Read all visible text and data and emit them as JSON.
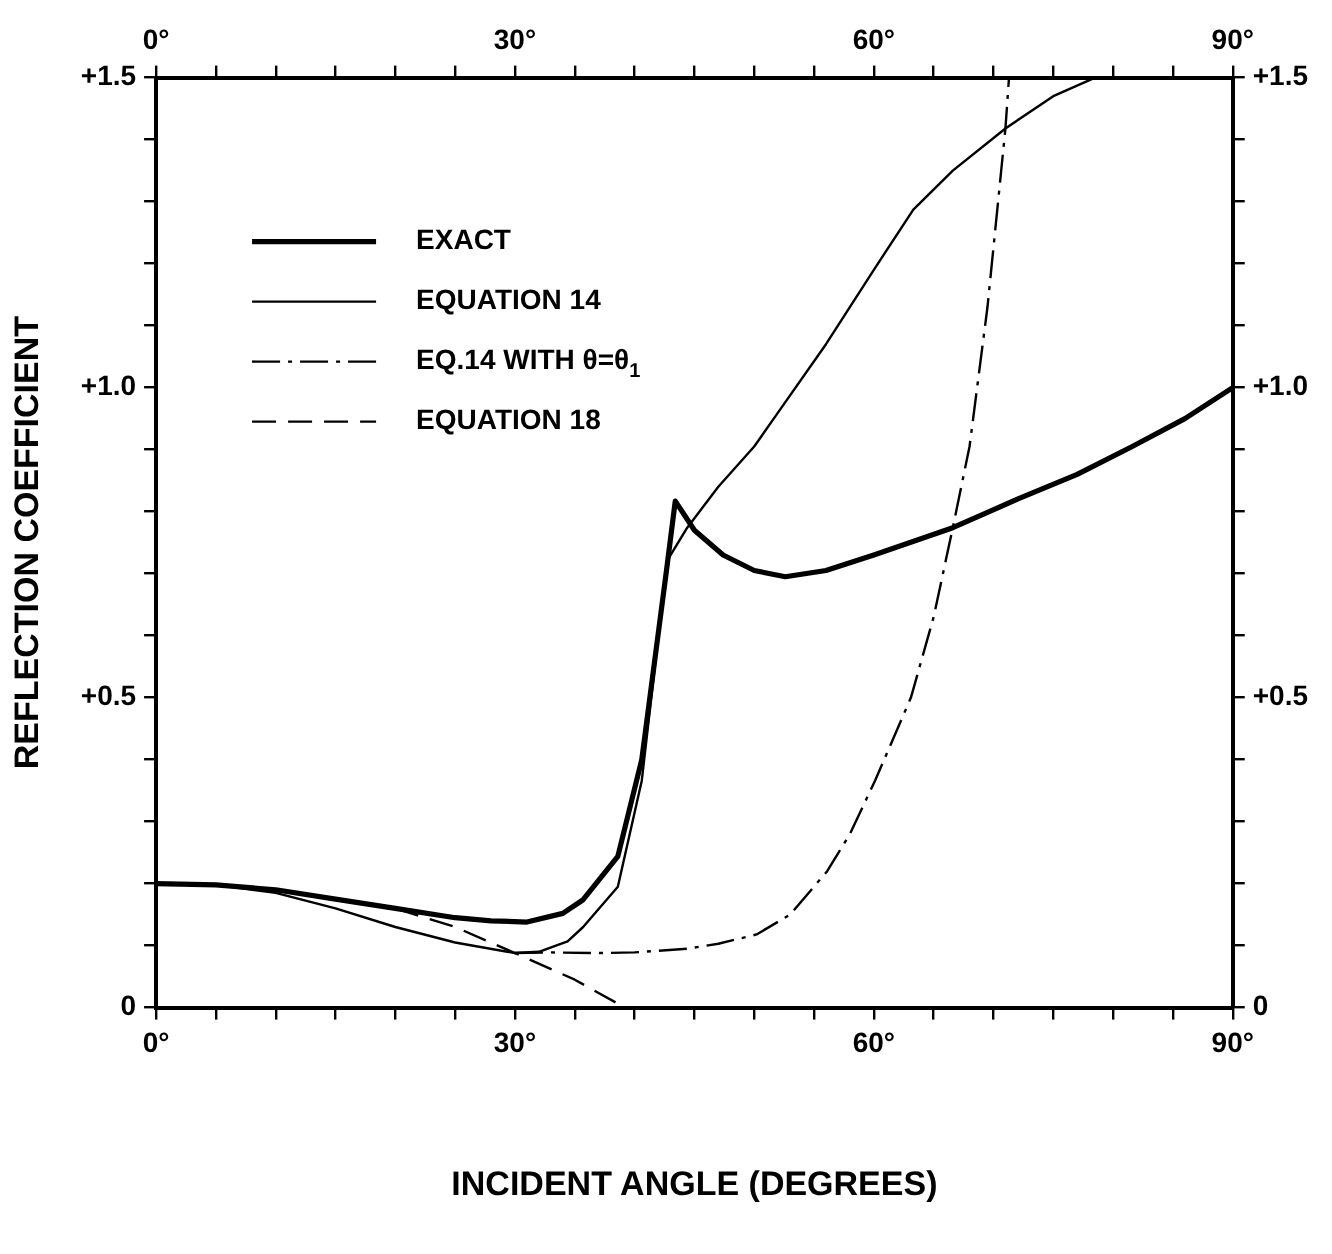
{
  "chart_data": {
    "type": "line",
    "xlabel": "INCIDENT ANGLE (DEGREES)",
    "ylabel": "REFLECTION COEFFICIENT",
    "legend": "top left",
    "grid": false,
    "marker": "none",
    "xlim": [
      0,
      90
    ],
    "ylim": [
      0,
      1.5
    ],
    "x2lim": [
      0,
      90
    ],
    "y2lim": [
      0,
      1.5
    ],
    "xticks": [
      {
        "value": 0,
        "label": "0°"
      },
      {
        "value": 5,
        "label": null
      },
      {
        "value": 10,
        "label": null
      },
      {
        "value": 15,
        "label": null
      },
      {
        "value": 20,
        "label": null
      },
      {
        "value": 25,
        "label": null
      },
      {
        "value": 30,
        "label": "30°"
      },
      {
        "value": 35,
        "label": null
      },
      {
        "value": 40,
        "label": null
      },
      {
        "value": 45,
        "label": null
      },
      {
        "value": 50,
        "label": null
      },
      {
        "value": 55,
        "label": null
      },
      {
        "value": 60,
        "label": "60°"
      },
      {
        "value": 65,
        "label": null
      },
      {
        "value": 70,
        "label": null
      },
      {
        "value": 75,
        "label": null
      },
      {
        "value": 80,
        "label": null
      },
      {
        "value": 85,
        "label": null
      },
      {
        "value": 90,
        "label": "90°"
      }
    ],
    "x2ticks": [
      {
        "value": 0,
        "label": "0°"
      },
      {
        "value": 5,
        "label": null
      },
      {
        "value": 10,
        "label": null
      },
      {
        "value": 15,
        "label": null
      },
      {
        "value": 20,
        "label": null
      },
      {
        "value": 25,
        "label": null
      },
      {
        "value": 30,
        "label": "30°"
      },
      {
        "value": 35,
        "label": null
      },
      {
        "value": 40,
        "label": null
      },
      {
        "value": 45,
        "label": null
      },
      {
        "value": 50,
        "label": null
      },
      {
        "value": 55,
        "label": null
      },
      {
        "value": 60,
        "label": "60°"
      },
      {
        "value": 65,
        "label": null
      },
      {
        "value": 70,
        "label": null
      },
      {
        "value": 75,
        "label": null
      },
      {
        "value": 80,
        "label": null
      },
      {
        "value": 85,
        "label": null
      },
      {
        "value": 90,
        "label": "90°"
      }
    ],
    "yticks": [
      {
        "value": 0,
        "label": "0"
      },
      {
        "value": 0.1,
        "label": null
      },
      {
        "value": 0.2,
        "label": null
      },
      {
        "value": 0.3,
        "label": null
      },
      {
        "value": 0.4,
        "label": null
      },
      {
        "value": 0.5,
        "label": "+0.5"
      },
      {
        "value": 0.6,
        "label": null
      },
      {
        "value": 0.7,
        "label": null
      },
      {
        "value": 0.8,
        "label": null
      },
      {
        "value": 0.9,
        "label": null
      },
      {
        "value": 1.0,
        "label": "+1.0"
      },
      {
        "value": 1.1,
        "label": null
      },
      {
        "value": 1.2,
        "label": null
      },
      {
        "value": 1.3,
        "label": null
      },
      {
        "value": 1.4,
        "label": null
      },
      {
        "value": 1.5,
        "label": "+1.5"
      }
    ],
    "y2ticks": [
      {
        "value": 0,
        "label": "0"
      },
      {
        "value": 0.1,
        "label": null
      },
      {
        "value": 0.2,
        "label": null
      },
      {
        "value": 0.3,
        "label": null
      },
      {
        "value": 0.4,
        "label": null
      },
      {
        "value": 0.5,
        "label": "+0.5"
      },
      {
        "value": 0.6,
        "label": null
      },
      {
        "value": 0.7,
        "label": null
      },
      {
        "value": 0.8,
        "label": null
      },
      {
        "value": 0.9,
        "label": null
      },
      {
        "value": 1.0,
        "label": "+1.0"
      },
      {
        "value": 1.1,
        "label": null
      },
      {
        "value": 1.2,
        "label": null
      },
      {
        "value": 1.3,
        "label": null
      },
      {
        "value": 1.4,
        "label": null
      },
      {
        "value": 1.5,
        "label": "+1.5"
      }
    ],
    "series": [
      {
        "name": "EXACT",
        "color": "#000000",
        "line_style": "solid",
        "x": [
          0,
          5,
          10,
          15,
          20,
          25,
          28,
          31,
          34,
          35.7,
          38.6,
          40.6,
          42.7,
          43.4,
          45,
          47.4,
          50,
          52.6,
          56,
          60,
          66.6,
          72,
          77,
          81.6,
          86,
          90
        ],
        "values": [
          0.2,
          0.198,
          0.19,
          0.175,
          0.16,
          0.145,
          0.14,
          0.138,
          0.152,
          0.174,
          0.244,
          0.4,
          0.71,
          0.817,
          0.77,
          0.73,
          0.705,
          0.695,
          0.705,
          0.73,
          0.774,
          0.82,
          0.86,
          0.905,
          0.95,
          1.0
        ]
      },
      {
        "name": "EQUATION 14",
        "color": "#000000",
        "line_style": "solid",
        "x": [
          0,
          5,
          10,
          15,
          20,
          25,
          30,
          32,
          34.4,
          35.7,
          38.6,
          40.6,
          42.7,
          44.4,
          47,
          50,
          52,
          56,
          60,
          63.3,
          66.6,
          71,
          75,
          78.5
        ],
        "values": [
          0.2,
          0.198,
          0.185,
          0.16,
          0.13,
          0.105,
          0.088,
          0.09,
          0.107,
          0.13,
          0.195,
          0.366,
          0.72,
          0.774,
          0.84,
          0.905,
          0.96,
          1.07,
          1.19,
          1.287,
          1.35,
          1.418,
          1.47,
          1.5
        ]
      },
      {
        "name": "EQ.14 WITH θ=θ$_{1}$",
        "color": "#000000",
        "line_style": "dashdot",
        "x": [
          30,
          33,
          37,
          40,
          44.4,
          47,
          50.2,
          53,
          56.1,
          58,
          60.1,
          63.1,
          65,
          66.6,
          68,
          69.5,
          71,
          71.3
        ],
        "values": [
          0.088,
          0.089,
          0.088,
          0.089,
          0.095,
          0.103,
          0.118,
          0.15,
          0.22,
          0.28,
          0.366,
          0.5,
          0.63,
          0.774,
          0.905,
          1.13,
          1.418,
          1.5
        ]
      },
      {
        "name": "EQUATION 18",
        "color": "#000000",
        "line_style": "dashed",
        "x": [
          20,
          22,
          25,
          30,
          35,
          39.2
        ],
        "values": [
          0.16,
          0.148,
          0.13,
          0.088,
          0.045,
          0
        ]
      }
    ]
  }
}
